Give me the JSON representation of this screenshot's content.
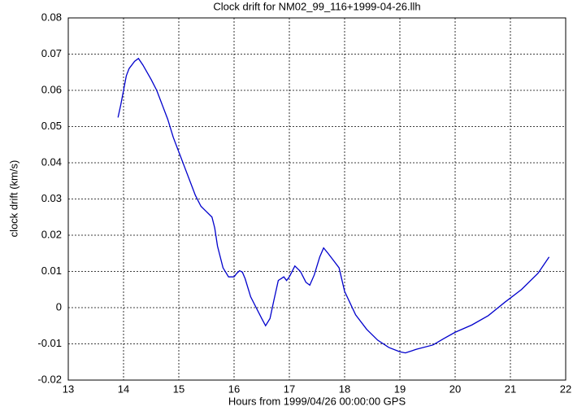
{
  "chart_data": {
    "type": "line",
    "title": "Clock drift for NM02_99_116+1999-04-26.llh",
    "x_label": "Hours from 1999/04/26 00:00:00 GPS",
    "y_label": "clock drift (km/s)",
    "x": [
      13.9,
      13.95,
      14.0,
      14.05,
      14.1,
      14.2,
      14.27,
      14.35,
      14.5,
      14.6,
      14.7,
      14.8,
      14.9,
      15.0,
      15.1,
      15.2,
      15.3,
      15.4,
      15.5,
      15.6,
      15.65,
      15.7,
      15.8,
      15.9,
      16.0,
      16.05,
      16.1,
      16.15,
      16.2,
      16.3,
      16.4,
      16.5,
      16.57,
      16.65,
      16.72,
      16.8,
      16.9,
      16.95,
      17.0,
      17.1,
      17.2,
      17.3,
      17.37,
      17.45,
      17.55,
      17.62,
      17.7,
      17.8,
      17.9,
      18.0,
      18.2,
      18.4,
      18.6,
      18.8,
      19.0,
      19.1,
      19.3,
      19.6,
      19.8,
      20.0,
      20.3,
      20.6,
      20.9,
      21.2,
      21.5,
      21.7
    ],
    "series": [
      {
        "color": "#0000cc",
        "values": [
          0.0525,
          0.056,
          0.06,
          0.064,
          0.066,
          0.068,
          0.0688,
          0.067,
          0.063,
          0.06,
          0.056,
          0.052,
          0.047,
          0.043,
          0.039,
          0.035,
          0.031,
          0.028,
          0.0265,
          0.025,
          0.022,
          0.017,
          0.011,
          0.0085,
          0.0085,
          0.0095,
          0.0102,
          0.0098,
          0.008,
          0.003,
          0.0,
          -0.003,
          -0.005,
          -0.003,
          0.002,
          0.0075,
          0.0085,
          0.0075,
          0.0085,
          0.0115,
          0.01,
          0.007,
          0.0062,
          0.009,
          0.014,
          0.0165,
          0.015,
          0.013,
          0.011,
          0.0045,
          -0.002,
          -0.006,
          -0.009,
          -0.011,
          -0.0122,
          -0.0125,
          -0.0115,
          -0.0103,
          -0.0085,
          -0.0068,
          -0.0048,
          -0.0022,
          0.0015,
          0.005,
          0.0095,
          0.014
        ]
      }
    ],
    "xlim": [
      13,
      22
    ],
    "xticks": [
      13,
      14,
      15,
      16,
      17,
      18,
      19,
      20,
      21,
      22
    ],
    "ylim": [
      -0.02,
      0.08
    ],
    "yticks": [
      -0.02,
      -0.01,
      0,
      0.01,
      0.02,
      0.03,
      0.04,
      0.05,
      0.06,
      0.07,
      0.08
    ],
    "grid": true
  }
}
